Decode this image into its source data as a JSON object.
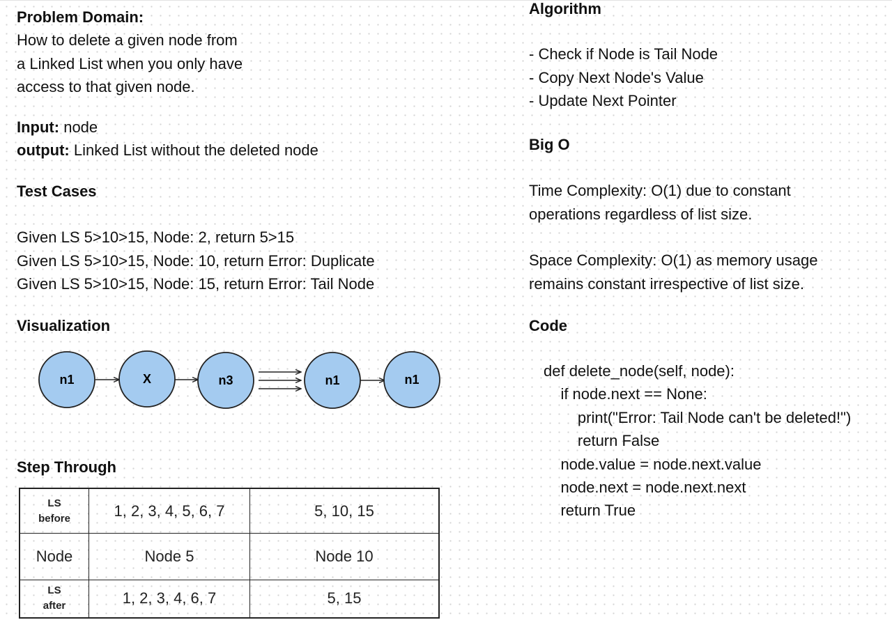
{
  "problem_domain": {
    "heading": "Problem Domain:",
    "lines": [
      "How to delete a given node from",
      "a Linked List when you only have",
      "access to that given node."
    ]
  },
  "io": {
    "input_label": "Input:",
    "input_value": " node",
    "output_label": "output:",
    "output_value": " Linked List without the deleted node"
  },
  "test_cases": {
    "heading": "Test Cases",
    "items": [
      "Given LS 5>10>15, Node: 2, return 5>15",
      "Given LS 5>10>15, Node: 10, return Error: Duplicate",
      "Given LS 5>10>15, Node: 15, return Error: Tail Node"
    ]
  },
  "visualization": {
    "heading": "Visualization",
    "node_color": "#a4cbf0",
    "nodes": [
      "n1",
      "X",
      "n3",
      "n1",
      "n1"
    ]
  },
  "step_through": {
    "heading": "Step Through",
    "rows": [
      {
        "label_top": "LS",
        "label_bottom": "before",
        "c1": "1, 2, 3, 4, 5, 6, 7",
        "c2": "5, 10, 15"
      },
      {
        "label": "Node",
        "c1": "Node 5",
        "c2": "Node 10"
      },
      {
        "label_top": "LS",
        "label_bottom": "after",
        "c1": "1, 2, 3, 4, 6, 7",
        "c2": "5, 15"
      }
    ]
  },
  "algorithm": {
    "heading": "Algorithm",
    "steps": [
      "- Check if Node is Tail Node",
      "- Copy Next Node's Value",
      "- Update Next Pointer"
    ]
  },
  "big_o": {
    "heading": "Big O",
    "time_lines": [
      "Time Complexity: O(1)  due to constant",
      "operations regardless of list size."
    ],
    "space_lines": [
      "Space Complexity: O(1) as memory usage",
      "remains constant irrespective of list size."
    ]
  },
  "code": {
    "heading": "Code",
    "lines": [
      "def delete_node(self, node):",
      "    if node.next == None:",
      "        print(\"Error: Tail Node can't be deleted!\")",
      "        return False",
      "    node.value = node.next.value",
      "    node.next = node.next.next",
      "    return True"
    ]
  }
}
